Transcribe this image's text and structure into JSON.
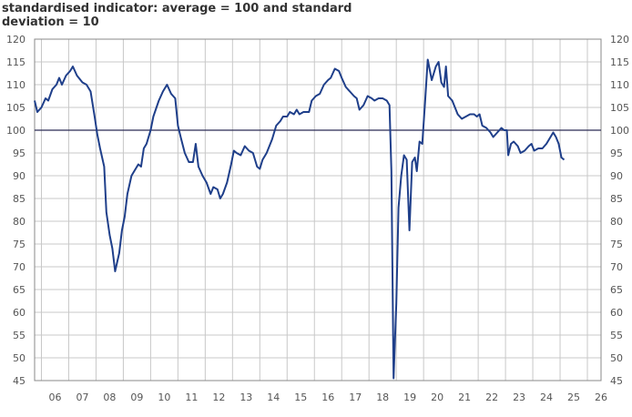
{
  "chart_data": {
    "type": "line",
    "title": "standardised indicator: average = 100 and standard deviation = 10",
    "xlabel": "",
    "ylabel": "",
    "ylim": [
      45,
      120
    ],
    "xlim": [
      2005.75,
      2026.5
    ],
    "y_ticks": [
      "45",
      "50",
      "55",
      "60",
      "65",
      "70",
      "75",
      "80",
      "85",
      "90",
      "95",
      "100",
      "105",
      "110",
      "115",
      "120"
    ],
    "x_tick_labels": [
      "06",
      "07",
      "08",
      "09",
      "10",
      "11",
      "12",
      "13",
      "14",
      "15",
      "16",
      "17",
      "18",
      "19",
      "20",
      "21",
      "22",
      "23",
      "24",
      "25",
      "26"
    ],
    "reference_line": 100,
    "grid": true,
    "colors": {
      "line": "#1f3f8a",
      "grid": "#c8c8c8",
      "reference": "#2b2b55",
      "axis": "#888888"
    },
    "series": [
      {
        "values": [
          [
            2005.75,
            106.5
          ],
          [
            2005.85,
            104.0
          ],
          [
            2006.0,
            105.0
          ],
          [
            2006.15,
            107.0
          ],
          [
            2006.25,
            106.5
          ],
          [
            2006.4,
            109.0
          ],
          [
            2006.55,
            110.0
          ],
          [
            2006.65,
            111.5
          ],
          [
            2006.75,
            110.0
          ],
          [
            2006.9,
            112.0
          ],
          [
            2007.05,
            113.0
          ],
          [
            2007.15,
            114.0
          ],
          [
            2007.3,
            112.0
          ],
          [
            2007.5,
            110.5
          ],
          [
            2007.65,
            110.0
          ],
          [
            2007.8,
            108.5
          ],
          [
            2007.95,
            103.0
          ],
          [
            2008.05,
            99.0
          ],
          [
            2008.15,
            96.0
          ],
          [
            2008.3,
            92.0
          ],
          [
            2008.38,
            82.0
          ],
          [
            2008.5,
            77.0
          ],
          [
            2008.6,
            74.0
          ],
          [
            2008.7,
            69.0
          ],
          [
            2008.85,
            73.0
          ],
          [
            2008.95,
            78.0
          ],
          [
            2009.05,
            81.0
          ],
          [
            2009.15,
            86.0
          ],
          [
            2009.3,
            90.0
          ],
          [
            2009.45,
            91.5
          ],
          [
            2009.55,
            92.5
          ],
          [
            2009.65,
            92.0
          ],
          [
            2009.75,
            96.0
          ],
          [
            2009.85,
            97.0
          ],
          [
            2010.0,
            100.0
          ],
          [
            2010.1,
            103.0
          ],
          [
            2010.3,
            106.5
          ],
          [
            2010.45,
            108.5
          ],
          [
            2010.6,
            110.0
          ],
          [
            2010.75,
            108.0
          ],
          [
            2010.9,
            107.0
          ],
          [
            2011.0,
            101.0
          ],
          [
            2011.1,
            98.5
          ],
          [
            2011.25,
            95.0
          ],
          [
            2011.4,
            93.0
          ],
          [
            2011.55,
            93.0
          ],
          [
            2011.65,
            97.0
          ],
          [
            2011.75,
            92.0
          ],
          [
            2011.9,
            90.0
          ],
          [
            2012.05,
            88.5
          ],
          [
            2012.2,
            86.0
          ],
          [
            2012.3,
            87.5
          ],
          [
            2012.45,
            87.0
          ],
          [
            2012.55,
            85.0
          ],
          [
            2012.65,
            86.0
          ],
          [
            2012.8,
            88.5
          ],
          [
            2012.95,
            92.5
          ],
          [
            2013.05,
            95.5
          ],
          [
            2013.15,
            95.0
          ],
          [
            2013.3,
            94.5
          ],
          [
            2013.45,
            96.5
          ],
          [
            2013.6,
            95.5
          ],
          [
            2013.75,
            95.0
          ],
          [
            2013.9,
            92.0
          ],
          [
            2014.0,
            91.5
          ],
          [
            2014.1,
            93.5
          ],
          [
            2014.25,
            95.0
          ],
          [
            2014.45,
            98.0
          ],
          [
            2014.6,
            101.0
          ],
          [
            2014.75,
            102.0
          ],
          [
            2014.85,
            103.0
          ],
          [
            2015.0,
            103.0
          ],
          [
            2015.1,
            104.0
          ],
          [
            2015.25,
            103.5
          ],
          [
            2015.35,
            104.5
          ],
          [
            2015.45,
            103.5
          ],
          [
            2015.6,
            104.0
          ],
          [
            2015.8,
            104.0
          ],
          [
            2015.9,
            106.5
          ],
          [
            2016.05,
            107.5
          ],
          [
            2016.2,
            108.0
          ],
          [
            2016.35,
            110.0
          ],
          [
            2016.5,
            111.0
          ],
          [
            2016.6,
            111.5
          ],
          [
            2016.75,
            113.5
          ],
          [
            2016.9,
            113.0
          ],
          [
            2017.0,
            111.5
          ],
          [
            2017.15,
            109.5
          ],
          [
            2017.3,
            108.5
          ],
          [
            2017.45,
            107.5
          ],
          [
            2017.55,
            107.0
          ],
          [
            2017.65,
            104.5
          ],
          [
            2017.8,
            105.5
          ],
          [
            2017.95,
            107.5
          ],
          [
            2018.1,
            107.0
          ],
          [
            2018.2,
            106.5
          ],
          [
            2018.35,
            107.0
          ],
          [
            2018.5,
            107.0
          ],
          [
            2018.65,
            106.5
          ],
          [
            2018.75,
            105.5
          ],
          [
            2018.82,
            91.0
          ],
          [
            2018.9,
            45.5
          ],
          [
            2019.0,
            62.0
          ],
          [
            2019.08,
            83.0
          ],
          [
            2019.18,
            90.0
          ],
          [
            2019.28,
            94.5
          ],
          [
            2019.38,
            93.5
          ],
          [
            2019.48,
            78.0
          ],
          [
            2019.58,
            93.0
          ],
          [
            2019.68,
            94.0
          ],
          [
            2019.75,
            91.0
          ],
          [
            2019.85,
            97.5
          ],
          [
            2019.95,
            97.0
          ],
          [
            2020.05,
            106.0
          ],
          [
            2020.15,
            115.5
          ],
          [
            2020.3,
            111.0
          ],
          [
            2020.45,
            114.0
          ],
          [
            2020.55,
            115.0
          ],
          [
            2020.65,
            110.5
          ],
          [
            2020.75,
            109.5
          ],
          [
            2020.82,
            114.0
          ],
          [
            2020.9,
            107.5
          ],
          [
            2021.05,
            106.5
          ],
          [
            2021.15,
            105.0
          ],
          [
            2021.25,
            103.5
          ],
          [
            2021.4,
            102.5
          ],
          [
            2021.55,
            103.0
          ],
          [
            2021.7,
            103.5
          ],
          [
            2021.85,
            103.5
          ],
          [
            2021.95,
            103.0
          ],
          [
            2022.05,
            103.5
          ],
          [
            2022.15,
            101.0
          ],
          [
            2022.3,
            100.5
          ],
          [
            2022.45,
            99.5
          ],
          [
            2022.55,
            98.5
          ],
          [
            2022.7,
            99.5
          ],
          [
            2022.85,
            100.5
          ],
          [
            2022.95,
            100.0
          ],
          [
            2023.05,
            100.0
          ],
          [
            2023.1,
            94.5
          ],
          [
            2023.2,
            97.0
          ],
          [
            2023.3,
            97.5
          ],
          [
            2023.45,
            96.5
          ],
          [
            2023.55,
            95.0
          ],
          [
            2023.7,
            95.5
          ],
          [
            2023.85,
            96.5
          ],
          [
            2023.95,
            97.0
          ],
          [
            2024.05,
            95.5
          ],
          [
            2024.2,
            96.0
          ],
          [
            2024.35,
            96.0
          ],
          [
            2024.5,
            97.0
          ],
          [
            2024.6,
            98.0
          ],
          [
            2024.75,
            99.5
          ],
          [
            2024.85,
            98.5
          ],
          [
            2024.95,
            97.0
          ],
          [
            2025.05,
            94.0
          ],
          [
            2025.15,
            93.5
          ]
        ]
      }
    ]
  }
}
